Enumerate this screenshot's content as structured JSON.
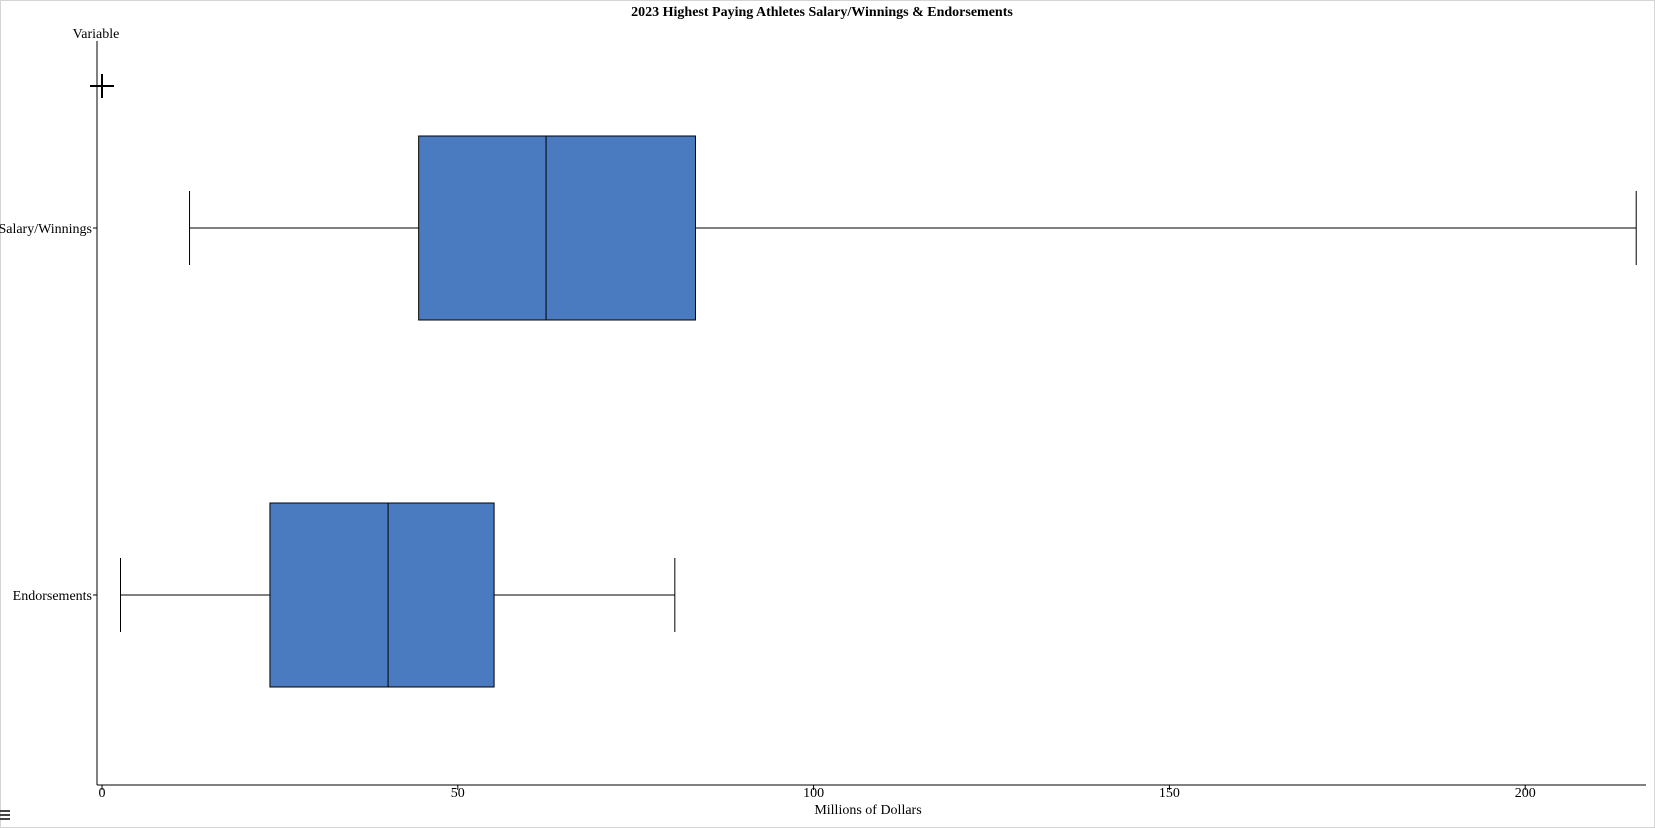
{
  "chart_data": {
    "type": "boxplot",
    "orientation": "horizontal",
    "title": "2023 Highest Paying Athletes Salary/Winnings & Endorsements",
    "xlabel": "Millions of Dollars",
    "ylabel": "Variable",
    "xlim": [
      0,
      216
    ],
    "xticks": [
      0,
      50,
      100,
      150,
      200
    ],
    "xtick_labels": [
      "0",
      "50",
      "100",
      "150",
      "200"
    ],
    "box_color": "#4a7bc0",
    "grid": false,
    "categories": [
      "Salary/Winnings",
      "Endorsements"
    ],
    "series": [
      {
        "name": "Salary/Winnings",
        "min": 12.3,
        "q1": 44.5,
        "median": 62.4,
        "q3": 83.4,
        "max": 215.6
      },
      {
        "name": "Endorsements",
        "min": 2.6,
        "q1": 23.6,
        "median": 40.2,
        "q3": 55.1,
        "max": 80.5
      }
    ]
  }
}
